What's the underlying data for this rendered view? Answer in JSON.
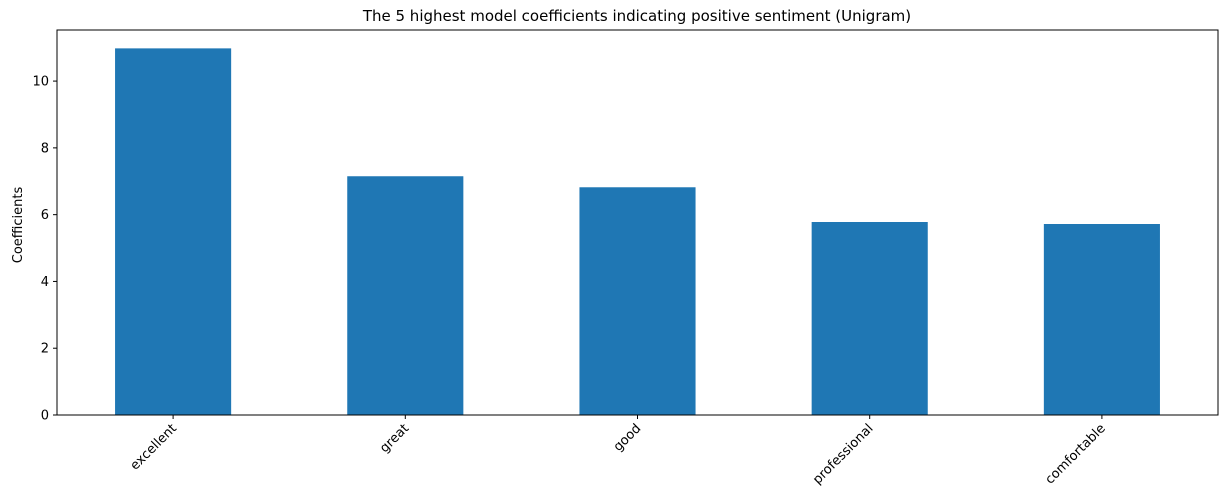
{
  "chart_data": {
    "type": "bar",
    "title": "The 5 highest model coefficients indicating positive sentiment (Unigram)",
    "xlabel": "",
    "ylabel": "Coefficients",
    "categories": [
      "excellent",
      "great",
      "good",
      "professional",
      "comfortable"
    ],
    "values": [
      10.98,
      7.15,
      6.82,
      5.78,
      5.72
    ],
    "ylim": [
      0,
      11.53
    ],
    "yticks": [
      0,
      2,
      4,
      6,
      8,
      10
    ],
    "grid": false,
    "bar_color": "#1f77b4"
  }
}
